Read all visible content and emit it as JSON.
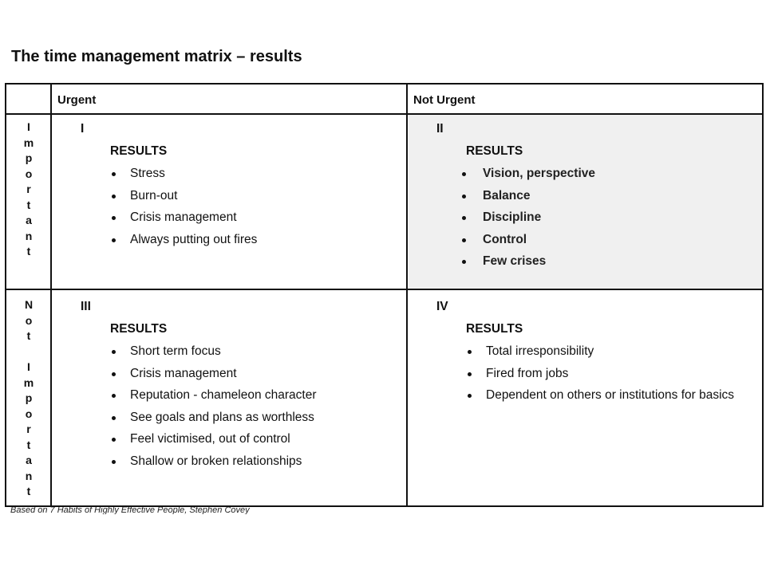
{
  "title": "The time management matrix – results",
  "headers": {
    "urgent": "Urgent",
    "not_urgent": "Not Urgent"
  },
  "rows": {
    "important": [
      "I",
      "m",
      "p",
      "o",
      "r",
      "t",
      "a",
      "n",
      "t"
    ],
    "not_important": [
      "N",
      "o",
      "t",
      "",
      "I",
      "m",
      "p",
      "o",
      "r",
      "t",
      "a",
      "n",
      "t"
    ]
  },
  "quadrants": [
    {
      "numeral": "I",
      "heading": "RESULTS",
      "items": [
        "Stress",
        "Burn-out",
        "Crisis management",
        "Always putting out fires"
      ]
    },
    {
      "numeral": "II",
      "heading": "RESULTS",
      "items": [
        "Vision, perspective",
        "Balance",
        "Discipline",
        "Control",
        "Few crises"
      ],
      "background": "#f0f0f0"
    },
    {
      "numeral": "III",
      "heading": "RESULTS",
      "items": [
        "Short term focus",
        "Crisis management",
        "Reputation - chameleon character",
        "See goals and plans as worthless",
        "Feel victimised, out of control",
        "Shallow or broken relationships"
      ]
    },
    {
      "numeral": "IV",
      "heading": "RESULTS",
      "items": [
        "Total irresponsibility",
        "Fired from jobs",
        "Dependent on others or institutions for basics"
      ]
    }
  ],
  "footnote": "Based on 7 Habits of Highly Effective People, Stephen Covey"
}
